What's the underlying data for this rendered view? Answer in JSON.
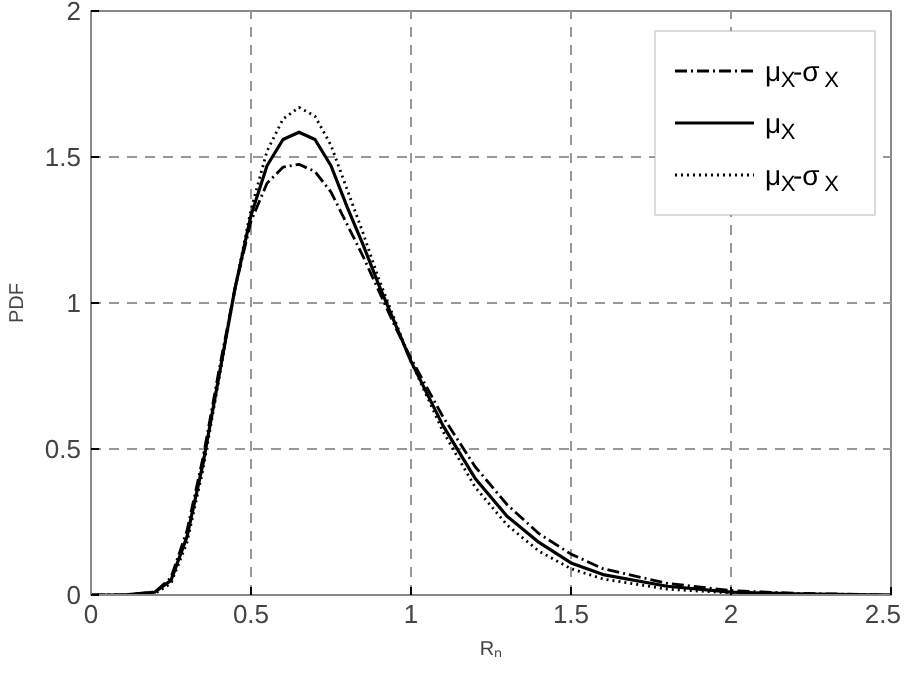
{
  "chart_data": {
    "type": "line",
    "xlabel": "Rₙ",
    "ylabel": "PDF",
    "x": [
      0,
      0.1,
      0.2,
      0.25,
      0.3,
      0.35,
      0.4,
      0.45,
      0.5,
      0.55,
      0.6,
      0.65,
      0.7,
      0.75,
      0.8,
      0.85,
      0.9,
      0.95,
      1.0,
      1.1,
      1.2,
      1.3,
      1.4,
      1.5,
      1.6,
      1.8,
      2.0,
      2.2,
      2.5
    ],
    "series": [
      {
        "name": "μ$_{X}$-σ$_{X}$",
        "color": "#000000",
        "line_style": "dashdot",
        "values": [
          0,
          0,
          0.01,
          0.06,
          0.22,
          0.47,
          0.77,
          1.05,
          1.28,
          1.41,
          1.465,
          1.475,
          1.45,
          1.38,
          1.27,
          1.16,
          1.04,
          0.92,
          0.81,
          0.61,
          0.44,
          0.31,
          0.21,
          0.14,
          0.09,
          0.04,
          0.015,
          0.006,
          0
        ]
      },
      {
        "name": "μ$_{X}$",
        "color": "#000000",
        "line_style": "solid",
        "values": [
          0,
          0,
          0.01,
          0.05,
          0.2,
          0.45,
          0.75,
          1.05,
          1.3,
          1.47,
          1.56,
          1.585,
          1.56,
          1.47,
          1.33,
          1.2,
          1.06,
          0.93,
          0.8,
          0.58,
          0.4,
          0.27,
          0.18,
          0.11,
          0.07,
          0.03,
          0.01,
          0.004,
          0
        ]
      },
      {
        "name": "μ$_{X}$-σ$_{X}$",
        "color": "#000000",
        "line_style": "dotted",
        "values": [
          0,
          0,
          0.005,
          0.04,
          0.18,
          0.43,
          0.74,
          1.05,
          1.32,
          1.52,
          1.63,
          1.67,
          1.64,
          1.54,
          1.39,
          1.24,
          1.08,
          0.94,
          0.8,
          0.56,
          0.37,
          0.24,
          0.15,
          0.09,
          0.055,
          0.02,
          0.007,
          0.002,
          0
        ]
      }
    ],
    "xlim": [
      0,
      2.5
    ],
    "ylim": [
      0,
      2
    ],
    "xticks": [
      0,
      0.5,
      1,
      1.5,
      2,
      2.5
    ],
    "yticks": [
      0,
      0.5,
      1,
      1.5,
      2
    ],
    "grid": true,
    "legend": "top right"
  }
}
